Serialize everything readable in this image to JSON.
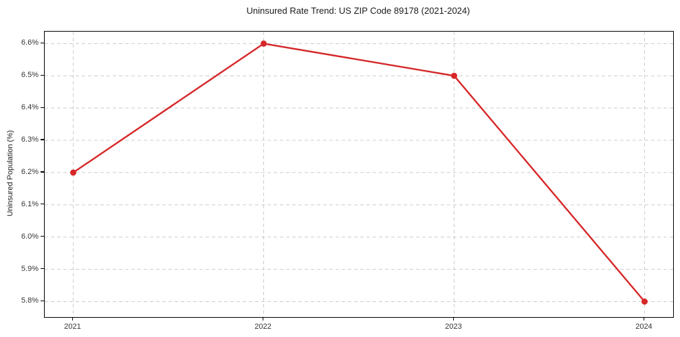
{
  "chart_data": {
    "type": "line",
    "title": "Uninsured Rate Trend: US ZIP Code 89178 (2021-2024)",
    "xlabel": "",
    "ylabel": "Uninsured Population (%)",
    "x": [
      2021,
      2022,
      2023,
      2024
    ],
    "values": [
      6.2,
      6.6,
      6.5,
      5.8
    ],
    "x_tick_labels": [
      "2021",
      "2022",
      "2023",
      "2024"
    ],
    "y_ticks": [
      5.8,
      5.9,
      6.0,
      6.1,
      6.2,
      6.3,
      6.4,
      6.5,
      6.6
    ],
    "y_tick_labels": [
      "5.8%",
      "5.9%",
      "6.0%",
      "6.1%",
      "6.2%",
      "6.3%",
      "6.4%",
      "6.5%",
      "6.6%"
    ],
    "xlim": [
      2020.85,
      2024.15
    ],
    "ylim": [
      5.752,
      6.637
    ],
    "grid": true,
    "legend": false,
    "marker": "circle",
    "line_color": "#d62728",
    "grid_color": "#cccccc",
    "axes_color": "#000000",
    "background_color": "#ffffff"
  }
}
